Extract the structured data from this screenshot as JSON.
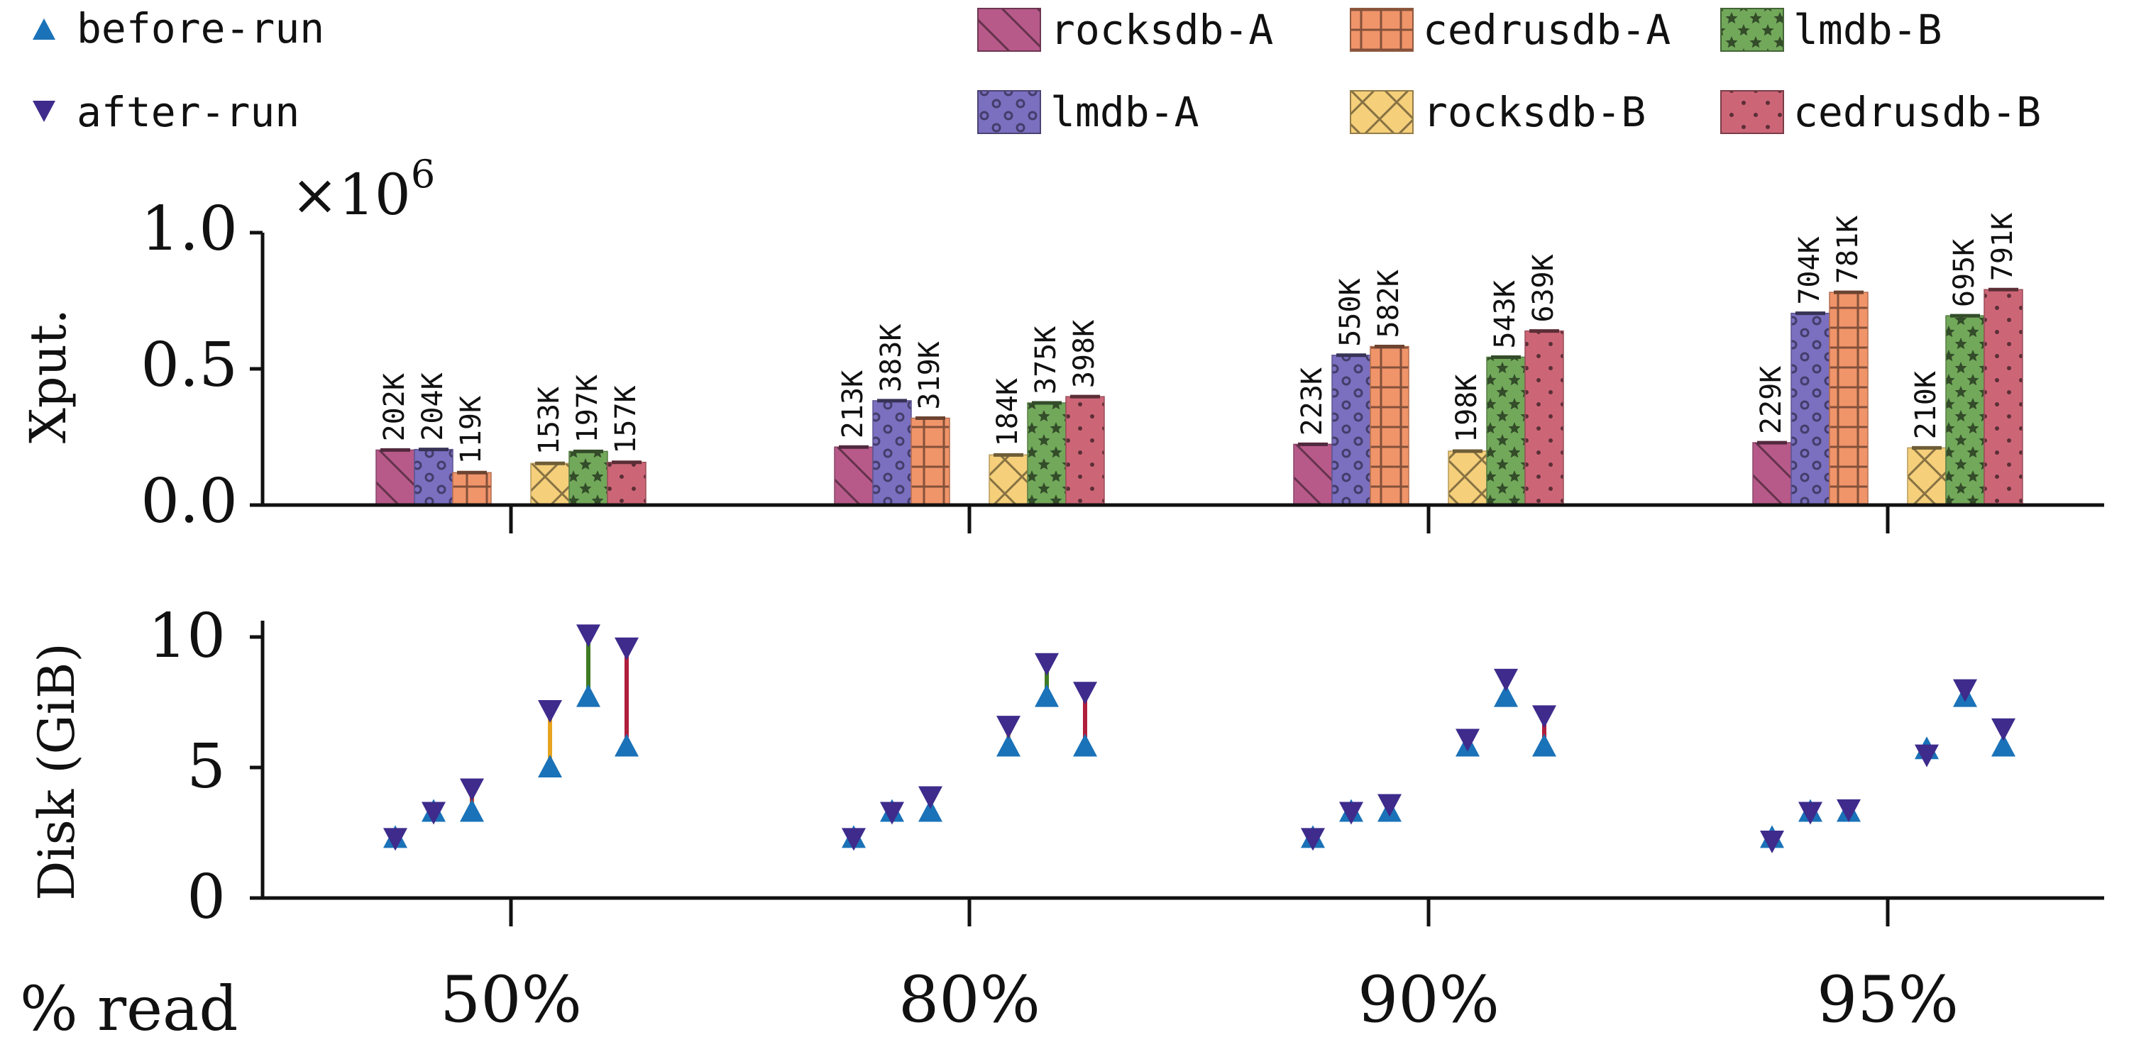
{
  "chart_data": [
    {
      "type": "bar",
      "title": "",
      "xlabel": "% read",
      "ylabel": "Xput.",
      "scale_label": "×10",
      "scale_exponent": "6",
      "categories": [
        "50%",
        "80%",
        "90%",
        "95%"
      ],
      "ylim": [
        0,
        1.0
      ],
      "yticks": [
        "0.0",
        "0.5",
        "1.0"
      ],
      "series": [
        {
          "name": "rocksdb-A",
          "color": "#b75a8a",
          "pattern": "diag",
          "values": [
            0.202,
            0.213,
            0.223,
            0.229
          ],
          "labels": [
            "202K",
            "213K",
            "223K",
            "229K"
          ]
        },
        {
          "name": "lmdb-A",
          "color": "#7b6fc0",
          "pattern": "circles",
          "values": [
            0.204,
            0.383,
            0.55,
            0.704
          ],
          "labels": [
            "204K",
            "383K",
            "550K",
            "704K"
          ]
        },
        {
          "name": "cedrusdb-A",
          "color": "#f0946a",
          "pattern": "grid",
          "values": [
            0.119,
            0.319,
            0.582,
            0.781
          ],
          "labels": [
            "119K",
            "319K",
            "582K",
            "781K"
          ]
        },
        {
          "name": "rocksdb-B",
          "color": "#f5cf7a",
          "pattern": "cross",
          "values": [
            0.153,
            0.184,
            0.198,
            0.21
          ],
          "labels": [
            "153K",
            "184K",
            "198K",
            "210K"
          ]
        },
        {
          "name": "lmdb-B",
          "color": "#72a85a",
          "pattern": "stars",
          "values": [
            0.197,
            0.375,
            0.543,
            0.695
          ],
          "labels": [
            "197K",
            "375K",
            "543K",
            "695K"
          ]
        },
        {
          "name": "cedrusdb-B",
          "color": "#cc6677",
          "pattern": "dots",
          "values": [
            0.157,
            0.398,
            0.639,
            0.791
          ],
          "labels": [
            "157K",
            "398K",
            "639K",
            "791K"
          ]
        }
      ]
    },
    {
      "type": "scatter",
      "title": "",
      "xlabel": "% read",
      "ylabel": "Disk (GiB)",
      "categories": [
        "50%",
        "80%",
        "90%",
        "95%"
      ],
      "ylim": [
        0,
        10.5
      ],
      "yticks": [
        "0",
        "5",
        "10"
      ],
      "series": [
        {
          "name": "rocksdb-A",
          "before_run": [
            2.3,
            2.3,
            2.3,
            2.3
          ],
          "after_run": [
            2.3,
            2.3,
            2.3,
            2.2
          ]
        },
        {
          "name": "lmdb-A",
          "before_run": [
            3.3,
            3.3,
            3.3,
            3.3
          ],
          "after_run": [
            3.3,
            3.3,
            3.3,
            3.3
          ]
        },
        {
          "name": "cedrusdb-A",
          "before_run": [
            3.3,
            3.3,
            3.3,
            3.3
          ],
          "after_run": [
            4.2,
            3.9,
            3.6,
            3.4
          ]
        },
        {
          "name": "rocksdb-B",
          "before_run": [
            5.0,
            5.8,
            5.8,
            5.7
          ],
          "after_run": [
            7.2,
            6.6,
            6.1,
            5.5
          ]
        },
        {
          "name": "lmdb-B",
          "before_run": [
            7.7,
            7.7,
            7.7,
            7.7
          ],
          "after_run": [
            10.1,
            9.0,
            8.4,
            8.0
          ]
        },
        {
          "name": "cedrusdb-B",
          "before_run": [
            5.8,
            5.8,
            5.8,
            5.8
          ],
          "after_run": [
            9.6,
            7.9,
            7.0,
            6.5
          ]
        }
      ],
      "legend": [
        {
          "name": "before-run",
          "marker": "triangle-up",
          "color": "#1a72b8"
        },
        {
          "name": "after-run",
          "marker": "triangle-down",
          "color": "#3e2b8c"
        }
      ]
    }
  ]
}
